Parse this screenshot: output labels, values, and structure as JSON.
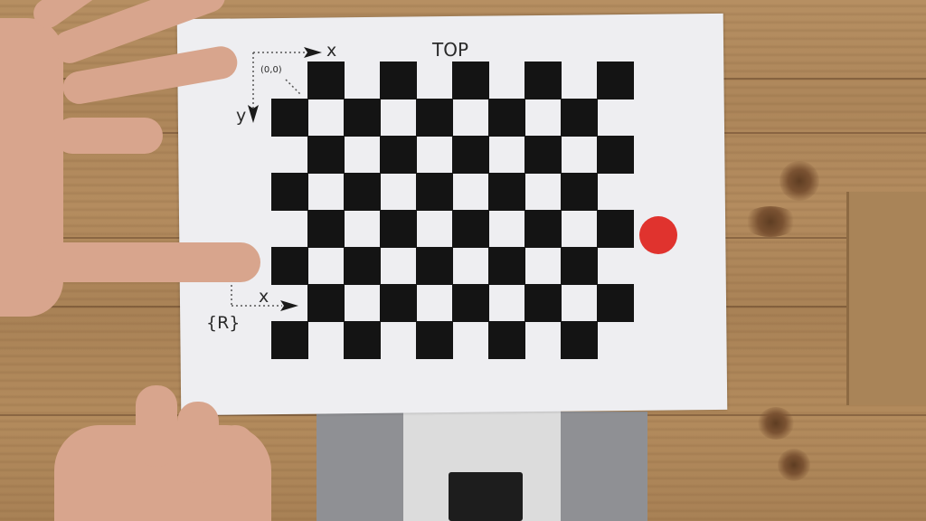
{
  "scene": {
    "description_colors": {
      "paper": "#eeeef1",
      "checker": "#141414",
      "dot": "#e0332e",
      "wood": "#b08a5d"
    }
  },
  "sheet": {
    "top_label": "TOP",
    "origin_label": "(0,0)",
    "x_top": "x",
    "y_top": "y",
    "x_bottom": "x",
    "frame_label": "{R}"
  },
  "checkerboard": {
    "rows": 8,
    "cols": 10
  }
}
